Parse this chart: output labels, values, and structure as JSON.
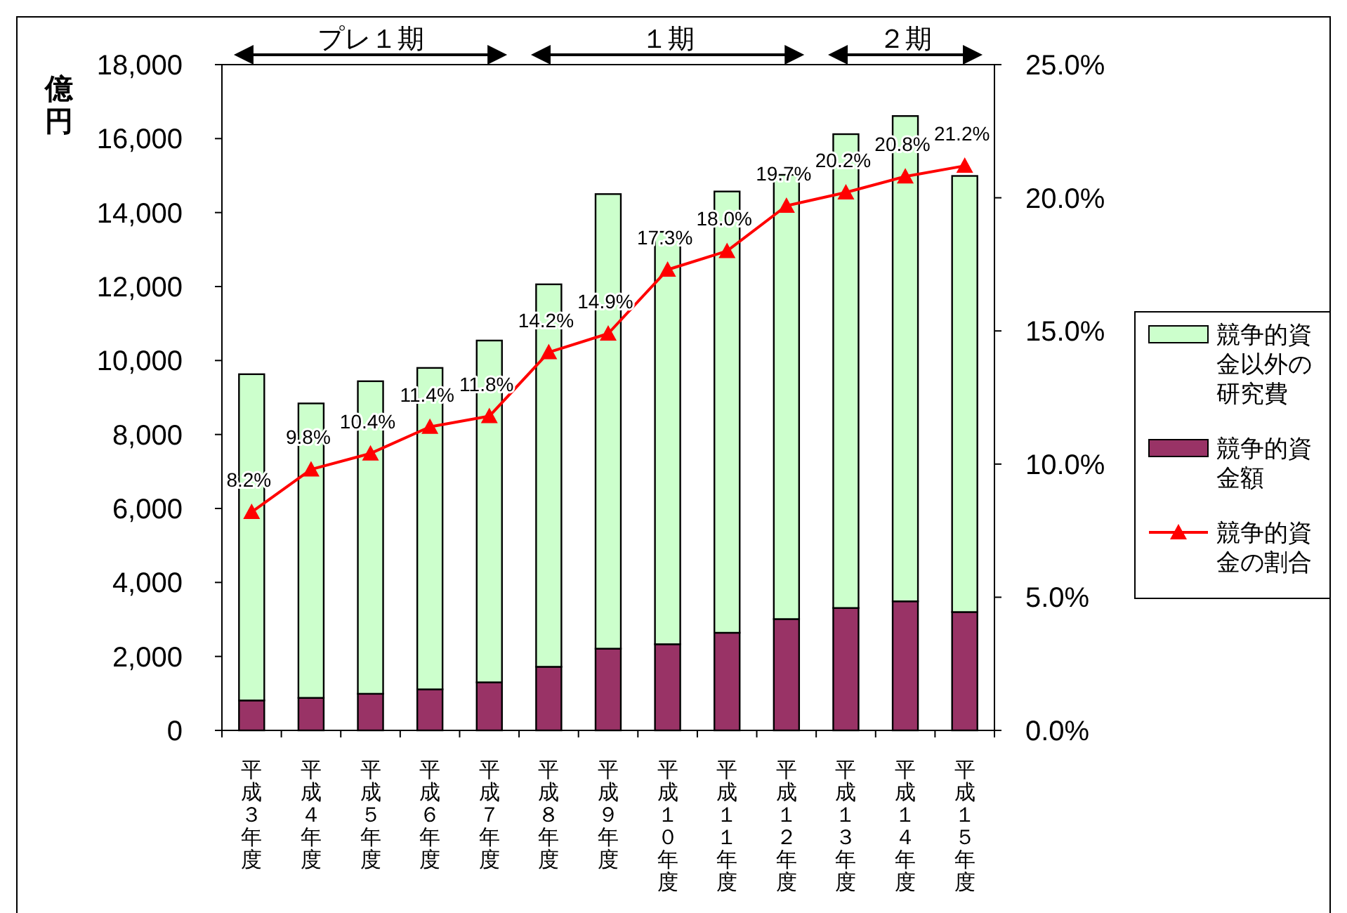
{
  "chart_data": {
    "type": "bar",
    "stacked": true,
    "ylabel": "億円",
    "categories": [
      "平成３年度",
      "平成４年度",
      "平成５年度",
      "平成６年度",
      "平成７年度",
      "平成８年度",
      "平成９年度",
      "平成１０年度",
      "平成１１年度",
      "平成１２年度",
      "平成１３年度",
      "平成１４年度",
      "平成１５年度"
    ],
    "series": [
      {
        "name": "競争的資金額",
        "color": "#993366",
        "values": [
          810,
          880,
          990,
          1110,
          1300,
          1720,
          2210,
          2330,
          2640,
          3010,
          3310,
          3490,
          3200
        ]
      },
      {
        "name": "競争的資金以外の研究費",
        "color": "#ccffcc",
        "values": [
          8820,
          7960,
          8450,
          8690,
          9240,
          10340,
          12290,
          11150,
          11930,
          12010,
          12810,
          13120,
          11790
        ]
      },
      {
        "name": "競争的資金の割合",
        "type": "line",
        "axis": "y2",
        "color": "#ff0000",
        "marker": "triangle",
        "values": [
          8.2,
          9.8,
          10.4,
          11.4,
          11.8,
          14.2,
          14.9,
          17.3,
          18.0,
          19.7,
          20.2,
          20.8,
          21.2
        ],
        "value_labels": [
          "8.2%",
          "9.8%",
          "10.4%",
          "11.4%",
          "11.8%",
          "14.2%",
          "14.9%",
          "17.3%",
          "18.0%",
          "19.7%",
          "20.2%",
          "20.8%",
          "21.2%"
        ]
      }
    ],
    "ylim": [
      0,
      18000
    ],
    "yticks": [
      0,
      {
        "value": 2000,
        "label": "2,000"
      },
      {
        "value": 4000,
        "label": "4,000"
      },
      {
        "value": 6000,
        "label": "6,000"
      },
      {
        "value": 8000,
        "label": "8,000"
      },
      {
        "value": 10000,
        "label": "10,000"
      },
      {
        "value": 12000,
        "label": "12,000"
      },
      {
        "value": 14000,
        "label": "14,000"
      },
      {
        "value": 16000,
        "label": "16,000"
      },
      {
        "value": 18000,
        "label": "18,000"
      }
    ],
    "y2lim": [
      0,
      25
    ],
    "y2ticks": [
      {
        "value": 0,
        "label": "0.0%"
      },
      {
        "value": 5,
        "label": "5.0%"
      },
      {
        "value": 10,
        "label": "10.0%"
      },
      {
        "value": 15,
        "label": "15.0%"
      },
      {
        "value": 20,
        "label": "20.0%"
      },
      {
        "value": 25,
        "label": "25.0%"
      }
    ],
    "annotations": [
      "プレ１期",
      "１期",
      "２期"
    ],
    "legend": "right",
    "grid": false
  }
}
